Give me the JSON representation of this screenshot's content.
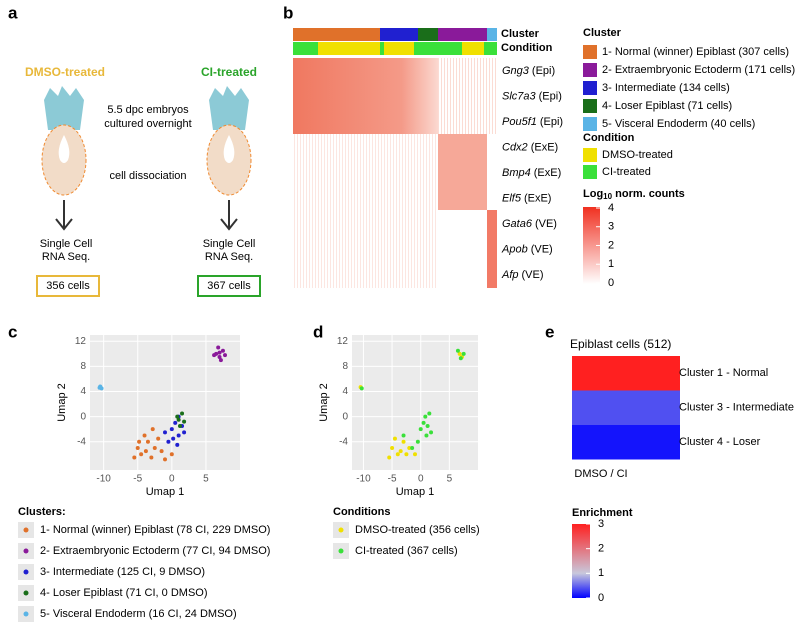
{
  "panel_a": {
    "label": "a",
    "dmso_title": "DMSO-treated",
    "ci_title": "CI-treated",
    "embryo_note": [
      "5.5 dpc embryos",
      "cultured overnight"
    ],
    "step": "cell dissociation",
    "method": [
      "Single Cell",
      "RNA Seq."
    ],
    "dmso_count": "356 cells",
    "ci_count": "367 cells"
  },
  "panel_b": {
    "label": "b",
    "track_labels": [
      "Cluster",
      "Condition"
    ],
    "genes": [
      {
        "name": "Gng3",
        "tag": "(Epi)"
      },
      {
        "name": "Slc7a3",
        "tag": "(Epi)"
      },
      {
        "name": "Pou5f1",
        "tag": "(Epi)"
      },
      {
        "name": "Cdx2",
        "tag": "(ExE)"
      },
      {
        "name": "Bmp4",
        "tag": "(ExE)"
      },
      {
        "name": "Elf5",
        "tag": "(ExE)"
      },
      {
        "name": "Gata6",
        "tag": "(VE)"
      },
      {
        "name": "Apob",
        "tag": "(VE)"
      },
      {
        "name": "Afp",
        "tag": "(VE)"
      }
    ],
    "cluster_title": "Cluster",
    "clusters": [
      {
        "name": "1- Normal (winner) Epiblast (307 cells)",
        "color": "#e0712a"
      },
      {
        "name": "2- Extraembryonic Ectoderm (171 cells)",
        "color": "#8a1a9a"
      },
      {
        "name": "3- Intermediate (134 cells)",
        "color": "#2020d0"
      },
      {
        "name": "4- Loser Epiblast (71 cells)",
        "color": "#1a6e1a"
      },
      {
        "name": "5- Visceral Endoderm (40 cells)",
        "color": "#5ab4e6"
      }
    ],
    "condition_title": "Condition",
    "conditions": [
      {
        "name": "DMSO-treated",
        "color": "#f0e000"
      },
      {
        "name": "CI-treated",
        "color": "#3ae03a"
      }
    ],
    "scale_title": [
      "Log",
      "10",
      " norm. counts"
    ],
    "scale_lim": [
      0,
      4
    ],
    "scale_ticks": [
      4,
      3,
      2,
      1,
      0
    ]
  },
  "panel_c": {
    "label": "c",
    "chart_data": {
      "type": "scatter",
      "xlabel": "Umap 1",
      "ylabel": "Umap 2",
      "xlim": [
        -12,
        10
      ],
      "ylim": [
        -8.5,
        13
      ],
      "xticks": [
        -10,
        -5,
        0,
        5
      ],
      "yticks": [
        12,
        8,
        4,
        0,
        -4
      ],
      "series": [
        {
          "name": "1- Normal (winner) Epiblast (78 CI, 229 DMSO)",
          "color": "#e0712a",
          "x": [
            -5,
            -4.5,
            -3.5,
            -3,
            -2.5,
            -4,
            -5.5,
            -2,
            -3.8,
            -2.8,
            -4.8,
            -1.5,
            0,
            -1
          ],
          "y": [
            -5,
            -6,
            -4,
            -6.5,
            -5,
            -3,
            -6.5,
            -3.5,
            -5.5,
            -2,
            -4,
            -5.5,
            -6,
            -6.8
          ]
        },
        {
          "name": "2- Extraembryonic Ectoderm (77 CI, 94 DMSO)",
          "color": "#8a1a9a",
          "x": [
            6.5,
            7,
            7.5,
            6.8,
            7.2,
            6.2,
            7.8,
            7
          ],
          "y": [
            10,
            9.5,
            10.5,
            11,
            9,
            9.8,
            9.8,
            10.2
          ]
        },
        {
          "name": "3- Intermediate (125 CI, 9 DMSO)",
          "color": "#2020d0",
          "x": [
            0,
            0.5,
            1,
            -0.5,
            1.5,
            0.2,
            1,
            -1,
            0.8,
            1.8
          ],
          "y": [
            -2,
            -1,
            -3,
            -4,
            -1.5,
            -3.5,
            0,
            -2.5,
            -4.5,
            -2.5
          ]
        },
        {
          "name": "4- Loser Epiblast (71 CI, 0 DMSO)",
          "color": "#1a6e1a",
          "x": [
            1,
            1.5,
            1.2,
            0.8,
            1.8
          ],
          "y": [
            -0.5,
            0.5,
            -1.5,
            0,
            -0.8
          ]
        },
        {
          "name": "5- Visceral Endoderm (16 CI, 24 DMSO)",
          "color": "#5ab4e6",
          "x": [
            -10.5,
            -10.3,
            -10.6
          ],
          "y": [
            4.8,
            4.5,
            4.6
          ]
        }
      ]
    },
    "legend_title": "Clusters:"
  },
  "panel_d": {
    "label": "d",
    "chart_data": {
      "type": "scatter",
      "xlabel": "Umap 1",
      "ylabel": "Umap 2",
      "xlim": [
        -12,
        10
      ],
      "ylim": [
        -8.5,
        13
      ],
      "xticks": [
        -10,
        -5,
        0,
        5
      ],
      "yticks": [
        12,
        8,
        4,
        0,
        -4
      ],
      "series": [
        {
          "name": "DMSO-treated (356 cells)",
          "color": "#f0e000",
          "x": [
            -5,
            -4,
            -3,
            -2.5,
            -4.5,
            -3.5,
            -2,
            -5.5,
            6.8,
            7.2,
            -10.5,
            -1
          ],
          "y": [
            -5,
            -6,
            -4,
            -6,
            -3.5,
            -5.5,
            -5,
            -6.5,
            10,
            9.5,
            4.7,
            -6
          ]
        },
        {
          "name": "CI-treated (367 cells)",
          "color": "#3ae03a",
          "x": [
            0,
            1,
            1.5,
            0.5,
            -0.5,
            1.2,
            1.8,
            -3,
            -1.5,
            6.5,
            7,
            7.5,
            -10.3,
            0.8
          ],
          "y": [
            -2,
            -3,
            0.5,
            -1,
            -4,
            -1.5,
            -2.5,
            -3,
            -5,
            10.5,
            9.3,
            10,
            4.5,
            0
          ]
        }
      ]
    },
    "legend_title": "Conditions"
  },
  "panel_e": {
    "label": "e",
    "title": "Epiblast cells (512)",
    "rows": [
      "Cluster 1 - Normal",
      "Cluster 3 - Intermediate",
      "Cluster 4 - Loser"
    ],
    "values": [
      3,
      0.4,
      0.1
    ],
    "xlabel": "DMSO / CI",
    "scale_title": "Enrichment",
    "scale_lim": [
      0,
      3
    ],
    "scale_ticks": [
      3,
      2,
      1,
      0
    ]
  }
}
